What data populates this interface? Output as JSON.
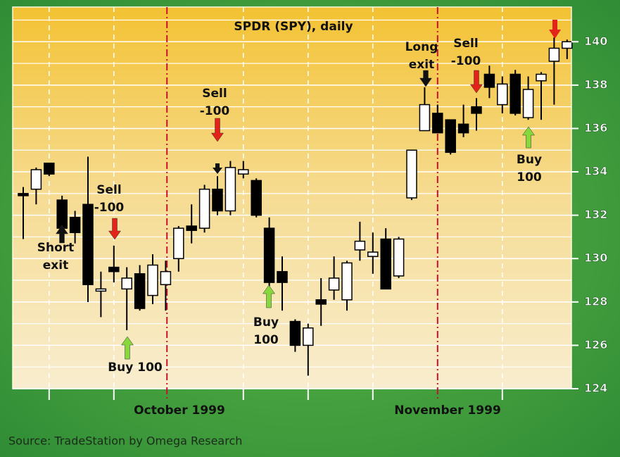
{
  "chart_data": {
    "type": "candlestick",
    "title": "SPDR (SPY), daily",
    "source": "Source: TradeStation by Omega Research",
    "month_labels": [
      "October 1999",
      "November 1999"
    ],
    "open": [
      133.0,
      133.2,
      134.4,
      132.7,
      131.9,
      132.5,
      128.5,
      129.6,
      128.6,
      129.3,
      128.3,
      128.8,
      130.0,
      131.5,
      131.4,
      133.2,
      132.2,
      133.9,
      133.6,
      131.4,
      129.4,
      127.1,
      126.0,
      128.1,
      128.55,
      128.1,
      130.4,
      130.1,
      130.9,
      129.2,
      132.8,
      135.9,
      136.7,
      136.4,
      136.2,
      137.0,
      138.5,
      137.1,
      138.5,
      136.5,
      138.2,
      139.1,
      139.7
    ],
    "high": [
      133.3,
      134.2,
      134.4,
      132.9,
      132.2,
      134.7,
      129.4,
      130.6,
      129.6,
      129.7,
      130.2,
      129.9,
      131.5,
      132.5,
      133.4,
      133.8,
      134.5,
      134.5,
      133.7,
      131.9,
      130.1,
      127.2,
      127.0,
      129.1,
      130.1,
      129.9,
      131.7,
      131.2,
      131.4,
      131.0,
      135.0,
      137.9,
      137.1,
      136.4,
      137.1,
      137.4,
      138.9,
      138.4,
      138.7,
      138.4,
      138.6,
      140.2,
      140.1
    ],
    "low": [
      130.9,
      132.5,
      133.8,
      130.9,
      130.7,
      128.0,
      127.3,
      128.9,
      126.7,
      127.6,
      127.9,
      127.6,
      129.4,
      130.7,
      131.2,
      132.0,
      132.0,
      133.7,
      131.9,
      128.6,
      127.6,
      125.7,
      124.6,
      126.9,
      128.1,
      127.6,
      129.9,
      129.3,
      128.6,
      129.1,
      132.7,
      135.9,
      135.8,
      134.8,
      135.6,
      135.9,
      137.4,
      136.7,
      136.6,
      136.4,
      136.4,
      137.1,
      139.2
    ],
    "close": [
      132.9,
      134.1,
      133.9,
      131.4,
      131.2,
      128.8,
      128.6,
      129.4,
      129.1,
      127.7,
      129.7,
      129.4,
      131.4,
      131.3,
      133.2,
      132.2,
      134.2,
      134.1,
      132.0,
      128.9,
      128.9,
      126.0,
      126.8,
      127.9,
      129.1,
      129.8,
      130.8,
      130.3,
      128.6,
      130.9,
      135.0,
      137.1,
      135.8,
      134.9,
      135.8,
      136.7,
      137.9,
      138.05,
      136.7,
      137.8,
      138.5,
      139.7,
      140.0
    ],
    "up_color": "#ffffff",
    "down_color": "#000000",
    "ylim": [
      124,
      141.6
    ],
    "yticks": [
      124,
      126,
      128,
      130,
      132,
      134,
      136,
      138,
      140
    ],
    "minor_yticks": [
      125,
      127,
      129,
      131,
      133,
      135,
      137,
      139,
      141
    ],
    "grid": true,
    "annotations": [
      {
        "lines": [
          "Short",
          "exit"
        ],
        "color": "#111111"
      },
      {
        "lines": [
          "Sell",
          "-100"
        ],
        "color": "#e2231a"
      },
      {
        "lines": [
          "Buy 100"
        ],
        "color": "#86d83c"
      },
      {
        "lines": [
          "Sell",
          "-100"
        ],
        "color": "#e2231a"
      },
      {
        "lines": [
          "Buy",
          "100"
        ],
        "color": "#86d83c"
      },
      {
        "lines": [
          "Long",
          "exit"
        ],
        "color": "#111111"
      },
      {
        "lines": [
          "Sell",
          "-100"
        ],
        "color": "#e2231a"
      },
      {
        "lines": [
          "Buy",
          "100"
        ],
        "color": "#86d83c"
      }
    ]
  }
}
